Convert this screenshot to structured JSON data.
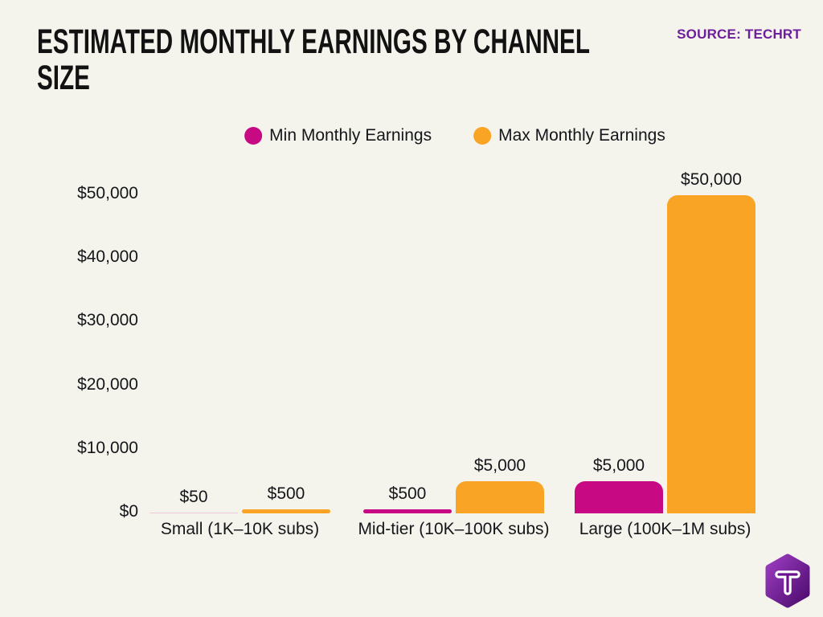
{
  "page": {
    "background": "#F4F3EC"
  },
  "header": {
    "title": "ESTIMATED MONTHLY EARNINGS BY CHANNEL SIZE",
    "source_label": "SOURCE: TECHRT",
    "source_color": "#6E1E9B"
  },
  "logo": {
    "letter": "T",
    "gradient_start": "#9A3CC0",
    "gradient_end": "#4E0C6E"
  },
  "chart_data": {
    "type": "bar",
    "title": "ESTIMATED MONTHLY EARNINGS BY CHANNEL SIZE",
    "xlabel": "",
    "ylabel": "",
    "value_prefix": "$",
    "grid": false,
    "legend_position": "top",
    "ylim": [
      0,
      50000
    ],
    "categories": [
      "Small (1K–10K subs)",
      "Mid-tier (10K–100K subs)",
      "Large (100K–1M subs)"
    ],
    "series": [
      {
        "name": "Min Monthly Earnings",
        "color": "#C70A84",
        "hairline_color": "#F0C6D9",
        "values": [
          50,
          500,
          5000
        ],
        "labels": [
          "$50",
          "$500",
          "$5,000"
        ]
      },
      {
        "name": "Max Monthly Earnings",
        "color": "#FAA425",
        "hairline_color": "#FBE3C2",
        "values": [
          500,
          5000,
          50000
        ],
        "labels": [
          "$500",
          "$5,000",
          "$50,000"
        ]
      }
    ],
    "yticks": [
      {
        "value": 0,
        "label": "$0"
      },
      {
        "value": 10000,
        "label": "$10,000"
      },
      {
        "value": 20000,
        "label": "$20,000"
      },
      {
        "value": 30000,
        "label": "$30,000"
      },
      {
        "value": 40000,
        "label": "$40,000"
      },
      {
        "value": 50000,
        "label": "$50,000"
      }
    ]
  }
}
